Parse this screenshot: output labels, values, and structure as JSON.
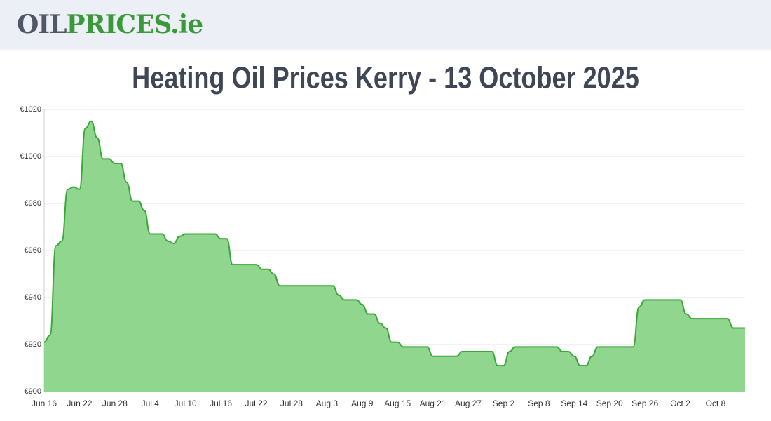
{
  "header": {
    "logo_dark": "OIL",
    "logo_green": "PRICES.ie"
  },
  "chart_data": {
    "type": "area",
    "title": "Heating Oil Prices Kerry - 13 October 2025",
    "color": "#3aa83a",
    "fill_color": "#90d68f",
    "grid": true,
    "categories": [
      "Jun 16",
      null,
      null,
      null,
      null,
      null,
      "Jun 22",
      null,
      null,
      null,
      null,
      null,
      "Jun 28",
      null,
      null,
      null,
      null,
      null,
      "Jul 4",
      null,
      null,
      null,
      null,
      null,
      "Jul 10",
      null,
      null,
      null,
      null,
      null,
      "Jul 16",
      null,
      null,
      null,
      null,
      null,
      "Jul 22",
      null,
      null,
      null,
      null,
      null,
      "Jul 28",
      null,
      null,
      null,
      null,
      null,
      "Aug 3",
      null,
      null,
      null,
      null,
      null,
      "Aug 9",
      null,
      null,
      null,
      null,
      null,
      "Aug 15",
      null,
      null,
      null,
      null,
      null,
      "Aug 21",
      null,
      null,
      null,
      null,
      null,
      "Aug 27",
      null,
      null,
      null,
      null,
      null,
      "Sep 2",
      null,
      null,
      null,
      null,
      null,
      "Sep 8",
      null,
      null,
      null,
      null,
      null,
      "Sep 14",
      null,
      null,
      null,
      null,
      null,
      "Sep 20",
      null,
      null,
      null,
      null,
      null,
      "Sep 26",
      null,
      null,
      null,
      null,
      null,
      "Oct 2",
      null,
      null,
      null,
      null,
      null,
      "Oct 8",
      null,
      null,
      null,
      null,
      null
    ],
    "values": [
      921,
      924,
      962,
      964,
      986,
      987,
      986,
      1012,
      1015,
      1008,
      999,
      999,
      997,
      997,
      989,
      981,
      981,
      977,
      967,
      967,
      967,
      964,
      963,
      966,
      967,
      967,
      967,
      967,
      967,
      967,
      965,
      965,
      954,
      954,
      954,
      954,
      954,
      952,
      952,
      950,
      945,
      945,
      945,
      945,
      945,
      945,
      945,
      945,
      945,
      945,
      941,
      939,
      939,
      939,
      937,
      933,
      933,
      929,
      927,
      921,
      921,
      919,
      919,
      919,
      919,
      919,
      915,
      915,
      915,
      915,
      915,
      917,
      917,
      917,
      917,
      917,
      917,
      911,
      911,
      917,
      919,
      919,
      919,
      919,
      919,
      919,
      919,
      919,
      917,
      917,
      915,
      911,
      911,
      915,
      919,
      919,
      919,
      919,
      919,
      919,
      919,
      936,
      939,
      939,
      939,
      939,
      939,
      939,
      939,
      933,
      931,
      931,
      931,
      931,
      931,
      931,
      931,
      927,
      927,
      927
    ],
    "ylim": [
      900,
      1020
    ],
    "yticks": [
      {
        "value": 900,
        "label": "€900"
      },
      {
        "value": 920,
        "label": "€920"
      },
      {
        "value": 940,
        "label": "€940"
      },
      {
        "value": 960,
        "label": "€960"
      },
      {
        "value": 980,
        "label": "€980"
      },
      {
        "value": 1000,
        "label": "€1000"
      },
      {
        "value": 1020,
        "label": "€1020"
      }
    ]
  }
}
